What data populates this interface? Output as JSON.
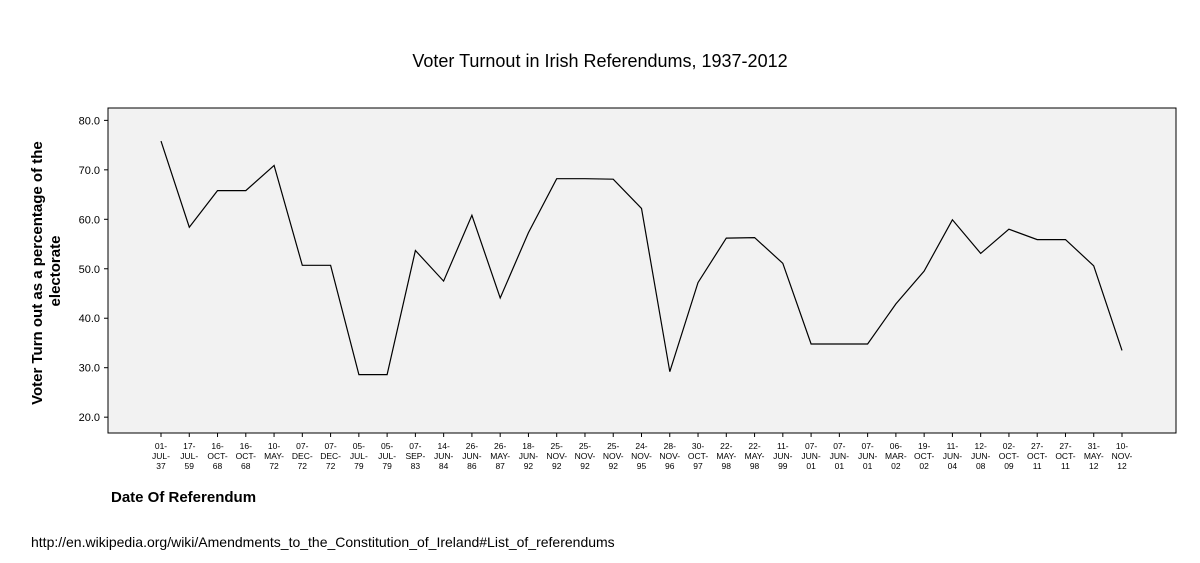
{
  "chart_data": {
    "type": "line",
    "title": "Voter Turnout in Irish Referendums, 1937-2012",
    "xlabel": "Date Of Referendum",
    "ylabel_lines": [
      "Voter Turn out as a percentage of the",
      "electorate"
    ],
    "ylim": [
      16.8,
      82.5
    ],
    "yticks": [
      "20.0",
      "30.0",
      "40.0",
      "50.0",
      "60.0",
      "70.0",
      "80.0"
    ],
    "grid": false,
    "plot_background": "#f2f2f2",
    "line_color": "#000000",
    "categories": [
      [
        "01-",
        "JUL-",
        "37"
      ],
      [
        "17-",
        "JUL-",
        "59"
      ],
      [
        "16-",
        "OCT-",
        "68"
      ],
      [
        "16-",
        "OCT-",
        "68"
      ],
      [
        "10-",
        "MAY-",
        "72"
      ],
      [
        "07-",
        "DEC-",
        "72"
      ],
      [
        "07-",
        "DEC-",
        "72"
      ],
      [
        "05-",
        "JUL-",
        "79"
      ],
      [
        "05-",
        "JUL-",
        "79"
      ],
      [
        "07-",
        "SEP-",
        "83"
      ],
      [
        "14-",
        "JUN-",
        "84"
      ],
      [
        "26-",
        "JUN-",
        "86"
      ],
      [
        "26-",
        "MAY-",
        "87"
      ],
      [
        "18-",
        "JUN-",
        "92"
      ],
      [
        "25-",
        "NOV-",
        "92"
      ],
      [
        "25-",
        "NOV-",
        "92"
      ],
      [
        "25-",
        "NOV-",
        "92"
      ],
      [
        "24-",
        "NOV-",
        "95"
      ],
      [
        "28-",
        "NOV-",
        "96"
      ],
      [
        "30-",
        "OCT-",
        "97"
      ],
      [
        "22-",
        "MAY-",
        "98"
      ],
      [
        "22-",
        "MAY-",
        "98"
      ],
      [
        "11-",
        "JUN-",
        "99"
      ],
      [
        "07-",
        "JUN-",
        "01"
      ],
      [
        "07-",
        "JUN-",
        "01"
      ],
      [
        "07-",
        "JUN-",
        "01"
      ],
      [
        "06-",
        "MAR-",
        "02"
      ],
      [
        "19-",
        "OCT-",
        "02"
      ],
      [
        "11-",
        "JUN-",
        "04"
      ],
      [
        "12-",
        "JUN-",
        "08"
      ],
      [
        "02-",
        "OCT-",
        "09"
      ],
      [
        "27-",
        "OCT-",
        "11"
      ],
      [
        "27-",
        "OCT-",
        "11"
      ],
      [
        "31-",
        "MAY-",
        "12"
      ],
      [
        "10-",
        "NOV-",
        "12"
      ]
    ],
    "values": [
      75.8,
      58.4,
      65.8,
      65.8,
      70.9,
      50.7,
      50.7,
      28.6,
      28.6,
      53.7,
      47.5,
      60.8,
      44.1,
      57.3,
      68.2,
      68.2,
      68.1,
      62.2,
      29.2,
      47.2,
      56.2,
      56.3,
      51.1,
      34.8,
      34.8,
      34.8,
      42.9,
      49.5,
      59.9,
      53.1,
      58.0,
      55.9,
      55.9,
      50.6,
      33.5
    ]
  },
  "source_text": "http://en.wikipedia.org/wiki/Amendments_to_the_Constitution_of_Ireland#List_of_referendums"
}
